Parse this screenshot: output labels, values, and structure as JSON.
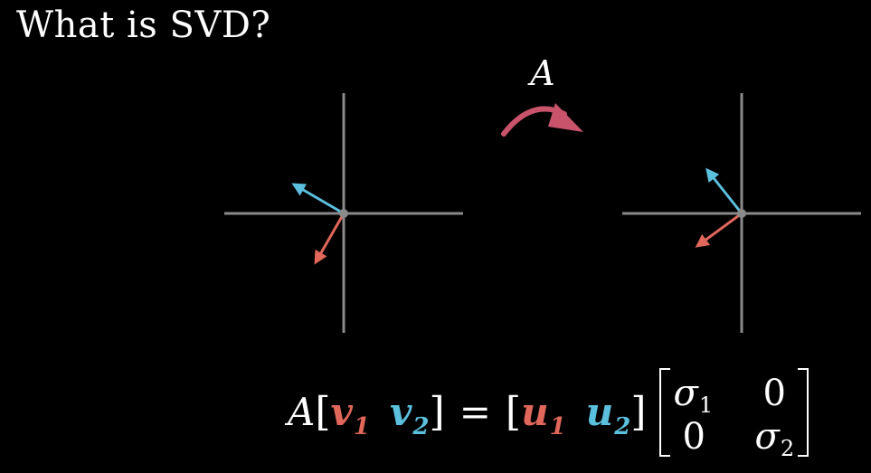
{
  "title": "What is SVD?",
  "transform_label": "A",
  "colors": {
    "background": "#000000",
    "axis": "#8a8a8a",
    "v1_u1": "#e0675a",
    "v2_u2": "#5bc0de",
    "transform_arrow": "#c8536a",
    "text": "#ffffff"
  },
  "equation": {
    "lhs_matrix": "A",
    "open_bracket": "[",
    "close_bracket": "]",
    "v": "v",
    "u": "u",
    "sub1": "1",
    "sub2": "2",
    "equals": "=",
    "sigma": "σ",
    "zero": "0"
  }
}
